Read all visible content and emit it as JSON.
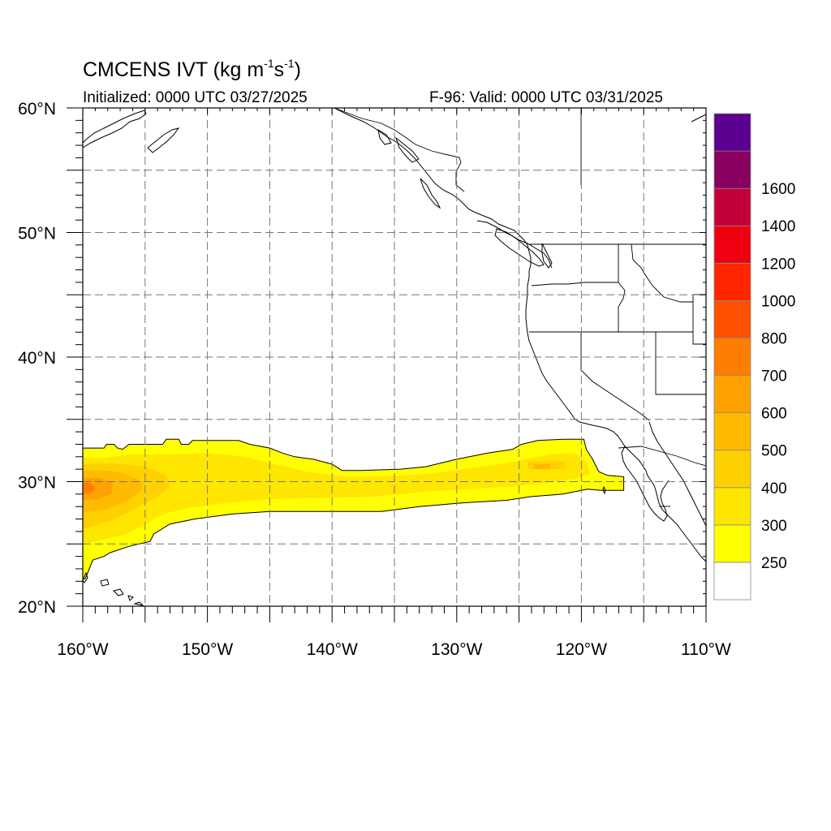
{
  "header": {
    "title_main": "CMCENS IVT (kg m",
    "title_sup1": "-1",
    "title_mid": "s",
    "title_sup2": "-1",
    "title_end": ")",
    "initialized": "Initialized: 0000 UTC 03/27/2025",
    "valid": "F-96: Valid: 0000 UTC 03/31/2025"
  },
  "map": {
    "lon_range": [
      -160,
      -110
    ],
    "lat_range": [
      20,
      60
    ],
    "gridlines": "dashed",
    "lat_ticks": [
      {
        "value": 20,
        "label": "20°N"
      },
      {
        "value": 30,
        "label": "30°N"
      },
      {
        "value": 40,
        "label": "40°N"
      },
      {
        "value": 50,
        "label": "50°N"
      },
      {
        "value": 60,
        "label": "60°N"
      }
    ],
    "lon_ticks": [
      {
        "value": -160,
        "label": "160°W"
      },
      {
        "value": -150,
        "label": "150°W"
      },
      {
        "value": -140,
        "label": "140°W"
      },
      {
        "value": -130,
        "label": "130°W"
      },
      {
        "value": -120,
        "label": "120°W"
      },
      {
        "value": -110,
        "label": "110°W"
      }
    ],
    "land_color": "#ffffff",
    "coast_color": "#000000"
  },
  "colorbar": {
    "labels": [
      "250",
      "300",
      "400",
      "500",
      "600",
      "700",
      "800",
      "1000",
      "1200",
      "1400",
      "1600"
    ],
    "colors": [
      "#ffffff",
      "#ffff00",
      "#ffe600",
      "#ffd100",
      "#ffbb00",
      "#ffa100",
      "#ff7d00",
      "#ff5100",
      "#ff2600",
      "#ee0011",
      "#c4003a",
      "#88005f",
      "#5b0090"
    ]
  },
  "chart_data": {
    "type": "heatmap",
    "variable": "IVT",
    "units": "kg m-1 s-1",
    "levels": [
      250,
      300,
      400,
      500,
      600,
      700,
      800,
      1000,
      1200,
      1400,
      1600
    ],
    "regions": [
      {
        "level": 250,
        "color": "#ffff00",
        "polygon": [
          [
            -160,
            32.7
          ],
          [
            -158.3,
            32.7
          ],
          [
            -158.1,
            33.0
          ],
          [
            -157.5,
            33.0
          ],
          [
            -157.2,
            32.7
          ],
          [
            -156.8,
            32.6
          ],
          [
            -156.3,
            33.0
          ],
          [
            -153.6,
            33.0
          ],
          [
            -153.3,
            33.4
          ],
          [
            -152.3,
            33.4
          ],
          [
            -152.1,
            33.0
          ],
          [
            -151.5,
            33.0
          ],
          [
            -151.2,
            33.3
          ],
          [
            -147.5,
            33.3
          ],
          [
            -146.6,
            33.0
          ],
          [
            -145.0,
            32.7
          ],
          [
            -144.0,
            32.3
          ],
          [
            -143.0,
            32.0
          ],
          [
            -141.5,
            31.8
          ],
          [
            -140.0,
            31.4
          ],
          [
            -139.2,
            30.9
          ],
          [
            -137.7,
            30.9
          ],
          [
            -134.5,
            31.0
          ],
          [
            -132.5,
            31.2
          ],
          [
            -130.0,
            31.8
          ],
          [
            -127.5,
            32.3
          ],
          [
            -125.5,
            32.6
          ],
          [
            -124.8,
            33.0
          ],
          [
            -123.5,
            33.3
          ],
          [
            -121.5,
            33.4
          ],
          [
            -119.8,
            33.4
          ],
          [
            -119.6,
            32.6
          ],
          [
            -119.1,
            31.8
          ],
          [
            -118.6,
            30.8
          ],
          [
            -117.9,
            30.5
          ],
          [
            -116.6,
            30.4
          ],
          [
            -116.6,
            29.3
          ],
          [
            -118.4,
            29.3
          ],
          [
            -119.5,
            29.4
          ],
          [
            -120.5,
            29.2
          ],
          [
            -121.5,
            29.0
          ],
          [
            -124.0,
            28.8
          ],
          [
            -126.0,
            28.5
          ],
          [
            -129.5,
            28.3
          ],
          [
            -133.0,
            28.0
          ],
          [
            -136.0,
            27.6
          ],
          [
            -140.0,
            27.6
          ],
          [
            -145.0,
            27.6
          ],
          [
            -148.0,
            27.4
          ],
          [
            -151.0,
            27.0
          ],
          [
            -153.0,
            26.6
          ],
          [
            -154.3,
            25.8
          ],
          [
            -154.6,
            25.2
          ],
          [
            -156.3,
            24.8
          ],
          [
            -157.8,
            24.3
          ],
          [
            -158.3,
            24.0
          ],
          [
            -159.2,
            23.7
          ],
          [
            -159.8,
            22.2
          ],
          [
            -160,
            22.2
          ]
        ]
      },
      {
        "level": 300,
        "color": "#ffe600",
        "polygon": [
          [
            -160,
            31.9
          ],
          [
            -158.5,
            31.9
          ],
          [
            -156.0,
            32.2
          ],
          [
            -152.5,
            32.2
          ],
          [
            -150.0,
            32.3
          ],
          [
            -147.0,
            32.0
          ],
          [
            -145.0,
            31.5
          ],
          [
            -142.0,
            30.8
          ],
          [
            -139.0,
            30.4
          ],
          [
            -136.0,
            30.4
          ],
          [
            -132.5,
            30.6
          ],
          [
            -129.5,
            31.0
          ],
          [
            -126.5,
            31.4
          ],
          [
            -124.5,
            31.8
          ],
          [
            -122.5,
            32.2
          ],
          [
            -120.5,
            32.3
          ],
          [
            -119.5,
            31.5
          ],
          [
            -119.3,
            30.6
          ],
          [
            -120.5,
            30.2
          ],
          [
            -123.0,
            29.9
          ],
          [
            -125.5,
            29.6
          ],
          [
            -129.0,
            29.4
          ],
          [
            -132.5,
            29.2
          ],
          [
            -136.5,
            28.8
          ],
          [
            -141.0,
            28.7
          ],
          [
            -145.0,
            28.6
          ],
          [
            -148.5,
            28.3
          ],
          [
            -151.5,
            27.9
          ],
          [
            -153.5,
            27.4
          ],
          [
            -155.0,
            26.6
          ],
          [
            -156.5,
            25.8
          ],
          [
            -158.5,
            25.3
          ],
          [
            -160,
            25.0
          ]
        ]
      },
      {
        "level": 400,
        "color": "#ffd100",
        "polygon": [
          [
            -160,
            31.4
          ],
          [
            -157.5,
            31.5
          ],
          [
            -155.0,
            31.2
          ],
          [
            -153.3,
            30.5
          ],
          [
            -153.0,
            29.6
          ],
          [
            -154.0,
            28.8
          ],
          [
            -155.5,
            28.0
          ],
          [
            -157.0,
            27.2
          ],
          [
            -158.8,
            26.5
          ],
          [
            -160,
            26.2
          ]
        ]
      },
      {
        "level": 400,
        "color": "#ffd100",
        "polygon": [
          [
            -124.3,
            31.6
          ],
          [
            -121.3,
            31.6
          ],
          [
            -121.3,
            31.0
          ],
          [
            -124.3,
            31.0
          ]
        ]
      },
      {
        "level": 500,
        "color": "#ffbb00",
        "polygon": [
          [
            -160,
            30.9
          ],
          [
            -158.0,
            30.9
          ],
          [
            -156.5,
            30.6
          ],
          [
            -155.2,
            30.0
          ],
          [
            -155.3,
            29.3
          ],
          [
            -156.5,
            28.4
          ],
          [
            -158.0,
            27.8
          ],
          [
            -160,
            27.5
          ]
        ]
      },
      {
        "level": 500,
        "color": "#ffbb00",
        "polygon": [
          [
            -123.8,
            31.4
          ],
          [
            -122.5,
            31.4
          ],
          [
            -122.5,
            31.0
          ],
          [
            -123.8,
            31.0
          ]
        ]
      },
      {
        "level": 600,
        "color": "#ffa100",
        "polygon": [
          [
            -160,
            30.3
          ],
          [
            -158.6,
            30.3
          ],
          [
            -157.6,
            29.9
          ],
          [
            -157.7,
            29.0
          ],
          [
            -158.8,
            28.6
          ],
          [
            -160,
            28.5
          ]
        ]
      },
      {
        "level": 700,
        "color": "#ff7d00",
        "polygon": [
          [
            -160,
            29.9
          ],
          [
            -159.4,
            29.9
          ],
          [
            -159.0,
            29.5
          ],
          [
            -159.3,
            29.1
          ],
          [
            -160,
            29.0
          ]
        ]
      }
    ]
  }
}
